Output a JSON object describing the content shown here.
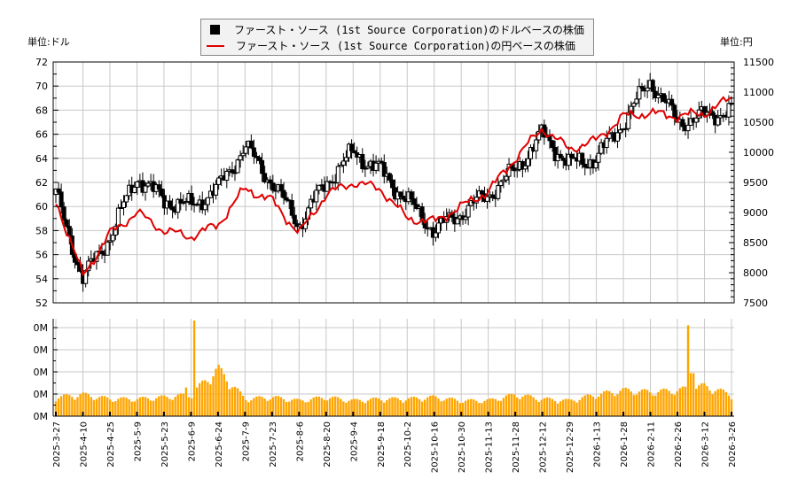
{
  "legend": {
    "usd_series_label": "ファースト・ソース (1st Source Corporation)のドルベースの株価",
    "jpy_series_label": "ファースト・ソース (1st Source Corporation)の円ベースの株価"
  },
  "axes": {
    "left_unit_label": "単位:ドル",
    "right_unit_label": "単位:円",
    "left_ticks": [
      "52",
      "54",
      "56",
      "58",
      "60",
      "62",
      "64",
      "66",
      "68",
      "70",
      "72"
    ],
    "right_ticks": [
      "7500",
      "8000",
      "8500",
      "9000",
      "9500",
      "10000",
      "10500",
      "11000",
      "11500"
    ],
    "volume_ticks": [
      "0M",
      "0M",
      "0M",
      "0M",
      "0M"
    ],
    "date_ticks": [
      "2025-3-27",
      "2025-4-10",
      "2025-4-25",
      "2025-5-9",
      "2025-5-23",
      "2025-6-9",
      "2025-6-24",
      "2025-7-9",
      "2025-7-23",
      "2025-8-6",
      "2025-8-20",
      "2025-9-4",
      "2025-9-18",
      "2025-10-2",
      "2025-10-16",
      "2025-10-30",
      "2025-11-13",
      "2025-11-28",
      "2025-12-12",
      "2025-12-29",
      "2026-1-13",
      "2026-1-28",
      "2026-2-11",
      "2026-2-26",
      "2026-3-12",
      "2026-3-26"
    ]
  },
  "colors": {
    "candle": "#000000",
    "jpy_line": "#e00000",
    "volume_bar": "#ffa500",
    "grid": "#c8c8c8",
    "legend_bg": "#f2f2f2"
  },
  "chart_data": [
    {
      "type": "candlestick+line",
      "title": "ファースト・ソース (1st Source Corporation) 株価",
      "xlabel": "",
      "ylabel_left": "単位:ドル",
      "ylabel_right": "単位:円",
      "ylim_left": [
        52,
        72
      ],
      "ylim_right": [
        7500,
        11500
      ],
      "grid": true,
      "legend_position": "top-center",
      "x_range": [
        "2025-3-27",
        "2026-3-26"
      ],
      "series": [
        {
          "name": "ファースト・ソース (1st Source Corporation)のドルベースの株価",
          "style": "candlestick",
          "approx_close_by_date_tick": [
            61.0,
            54.0,
            57.5,
            62.5,
            60.5,
            60.0,
            61.5,
            65.0,
            62.0,
            58.5,
            62.0,
            64.5,
            63.0,
            60.5,
            58.0,
            59.5,
            61.0,
            63.0,
            66.0,
            63.5,
            64.0,
            67.0,
            70.5,
            67.0,
            67.5,
            68.0
          ]
        },
        {
          "name": "ファースト・ソース (1st Source Corporation)の円ベースの株価",
          "style": "line",
          "approx_close_by_date_tick": [
            9200,
            7950,
            8650,
            9000,
            8700,
            8600,
            8800,
            9400,
            9200,
            8650,
            9300,
            9500,
            9400,
            8900,
            8850,
            9100,
            9350,
            9900,
            10400,
            10050,
            10200,
            10600,
            10650,
            10600,
            10650,
            10900
          ]
        }
      ]
    },
    {
      "type": "bar",
      "title": "出来高",
      "ylabel": "",
      "y_tick_labels": [
        "0M",
        "0M",
        "0M",
        "0M",
        "0M"
      ],
      "categories": [
        "2025-3-27",
        "2025-4-10",
        "2025-4-25",
        "2025-5-9",
        "2025-5-23",
        "2025-6-9",
        "2025-6-24",
        "2025-7-9",
        "2025-7-23",
        "2025-8-6",
        "2025-8-20",
        "2025-9-4",
        "2025-9-18",
        "2025-10-2",
        "2025-10-16",
        "2025-10-30",
        "2025-11-13",
        "2025-11-28",
        "2025-12-12",
        "2025-12-29",
        "2026-1-13",
        "2026-1-28",
        "2026-2-11",
        "2026-2-26",
        "2026-3-12",
        "2026-3-26"
      ],
      "relative_values": [
        0.22,
        0.25,
        0.2,
        0.2,
        0.22,
        0.25,
        0.55,
        0.2,
        0.22,
        0.18,
        0.22,
        0.18,
        0.2,
        0.2,
        0.22,
        0.18,
        0.18,
        0.25,
        0.2,
        0.18,
        0.25,
        0.3,
        0.28,
        0.3,
        0.35,
        0.25
      ],
      "notable_spikes": [
        {
          "date_approx": "2025-6-20",
          "relative": 1.0
        },
        {
          "date_approx": "2026-3-20",
          "relative": 0.95
        }
      ]
    }
  ]
}
